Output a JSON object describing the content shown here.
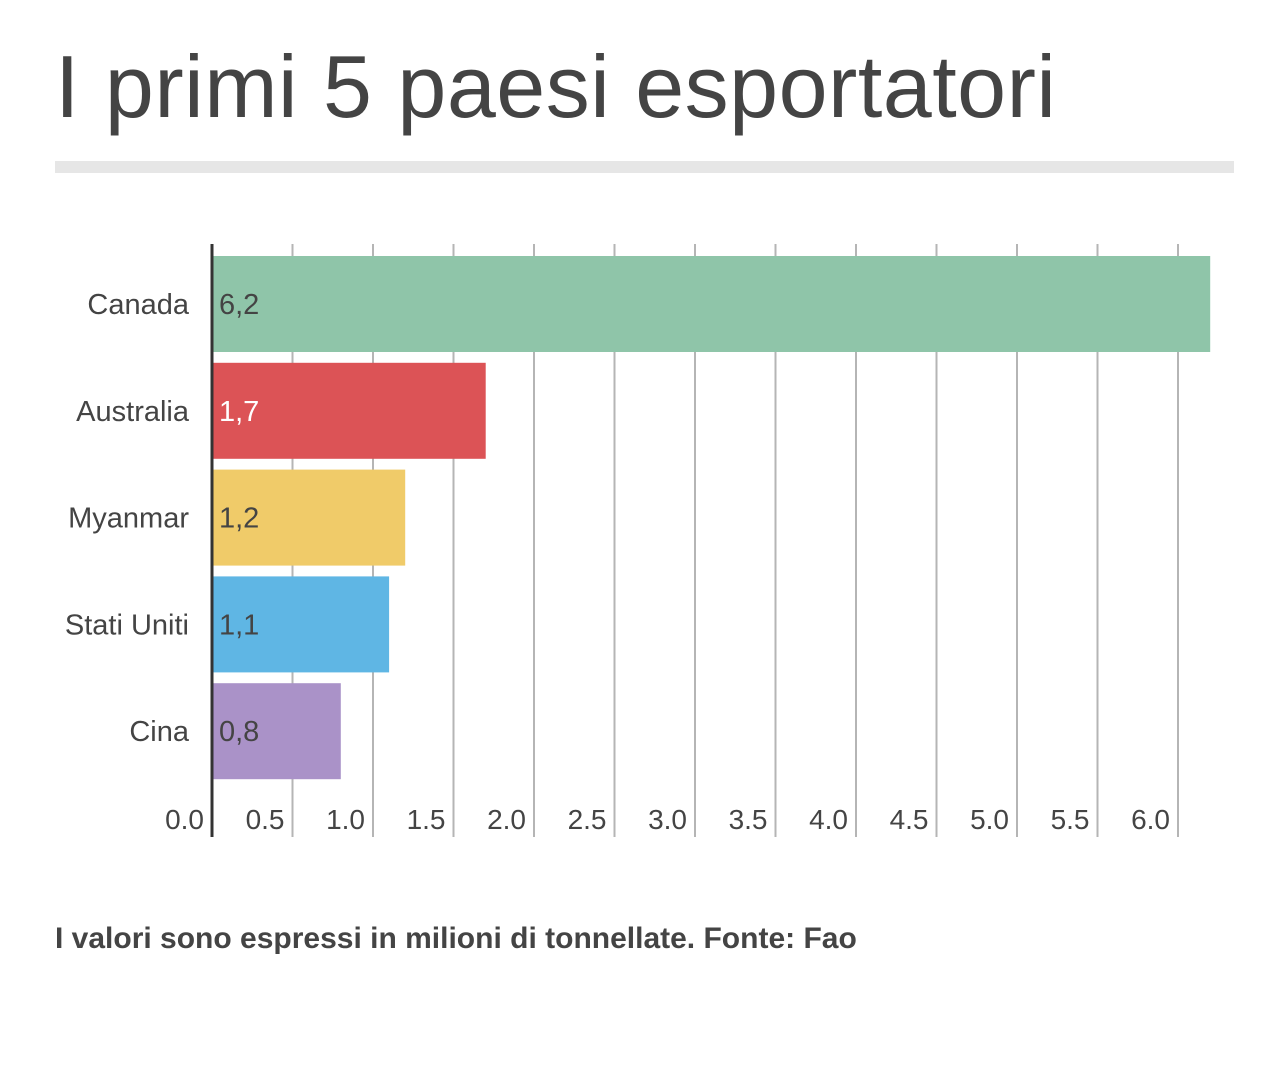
{
  "chart_data": {
    "type": "bar",
    "orientation": "horizontal",
    "title": "I primi 5 paesi esportatori",
    "categories": [
      "Canada",
      "Australia",
      "Myanmar",
      "Stati Uniti",
      "Cina"
    ],
    "values": [
      6.2,
      1.7,
      1.2,
      1.1,
      0.8
    ],
    "value_labels": [
      "6,2",
      "1,7",
      "1,2",
      "1,1",
      "0,8"
    ],
    "colors": [
      "#8fc5a9",
      "#dc5356",
      "#f0cb69",
      "#5fb6e4",
      "#aa92c8"
    ],
    "label_colors": [
      "#444444",
      "#ffffff",
      "#444444",
      "#444444",
      "#444444"
    ],
    "xlim": [
      0,
      6.25
    ],
    "xticks": [
      0,
      0.5,
      1,
      1.5,
      2,
      2.5,
      3,
      3.5,
      4,
      4.5,
      5,
      5.5,
      6
    ],
    "xtick_labels": [
      "0.0",
      "0.5",
      "1.0",
      "1.5",
      "2.0",
      "2.5",
      "3.0",
      "3.5",
      "4.0",
      "4.5",
      "5.0",
      "5.5",
      "6.0"
    ],
    "grid": "vertical",
    "legend": "none",
    "xlabel": "",
    "ylabel": ""
  },
  "footnote": "I valori sono espressi in milioni di tonnellate. Fonte: Fao"
}
